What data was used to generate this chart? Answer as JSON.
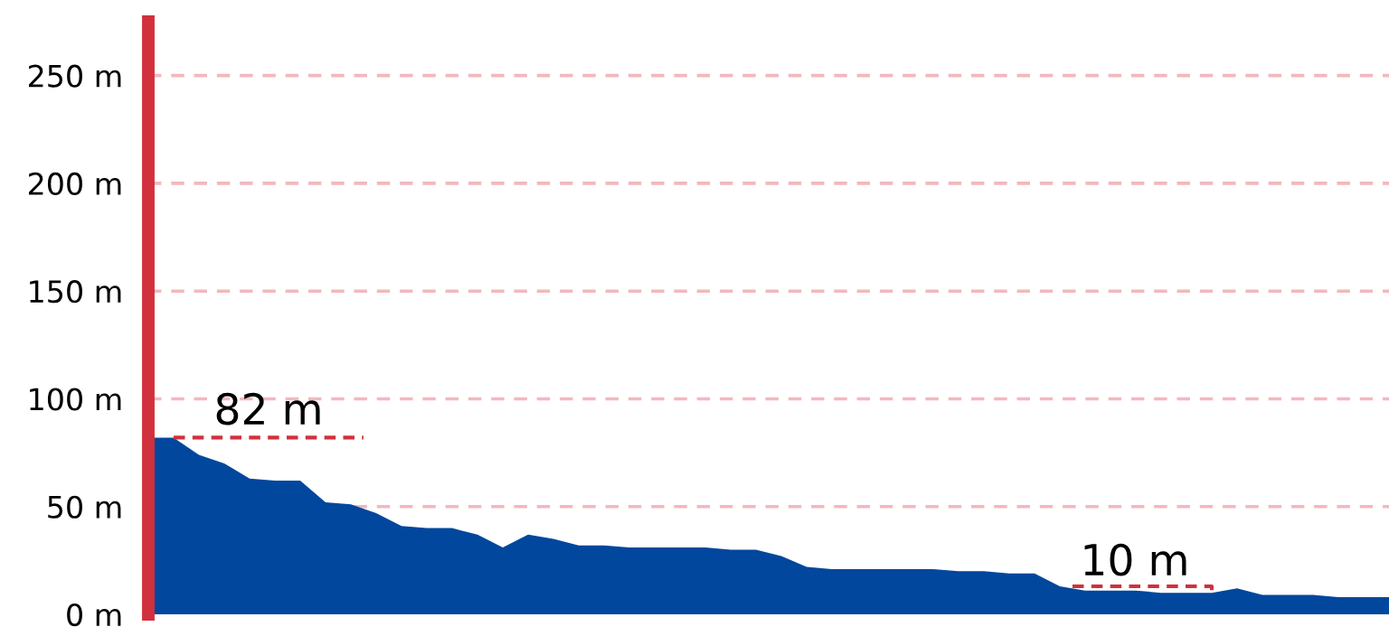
{
  "chart_data": {
    "type": "area",
    "categories": [
      null,
      null,
      null,
      null,
      null,
      null,
      null,
      null,
      null,
      null,
      null,
      null,
      null,
      null,
      null,
      null,
      null,
      null,
      null,
      null,
      null,
      null,
      null,
      null,
      null,
      null,
      null,
      null,
      null,
      null,
      null,
      null,
      null,
      null,
      null,
      null,
      null,
      null,
      null,
      null,
      null,
      null,
      null,
      null,
      null,
      null,
      null,
      null,
      null,
      null
    ],
    "series": [
      {
        "color": "#00479d",
        "values": [
          82,
          82,
          74,
          70,
          63,
          62,
          62,
          52,
          51,
          47,
          41,
          40,
          40,
          37,
          31,
          37,
          35,
          32,
          32,
          31,
          31,
          31,
          31,
          30,
          30,
          27,
          22,
          21,
          21,
          21,
          21,
          21,
          20,
          20,
          19,
          19,
          13,
          11,
          11,
          11,
          10,
          10,
          10,
          12,
          9,
          9,
          9,
          8,
          8,
          8
        ]
      }
    ],
    "ylim": [
      0,
      275
    ],
    "yticks": [
      {
        "value": 0,
        "label": "0 m"
      },
      {
        "value": 50,
        "label": "50 m"
      },
      {
        "value": 100,
        "label": "100 m"
      },
      {
        "value": 150,
        "label": "150 m"
      },
      {
        "value": 200,
        "label": "200 m"
      },
      {
        "value": 250,
        "label": "250 m"
      }
    ],
    "tick_labels": "y",
    "grid": "y",
    "annotations": [
      "82 m",
      "10 m"
    ]
  }
}
